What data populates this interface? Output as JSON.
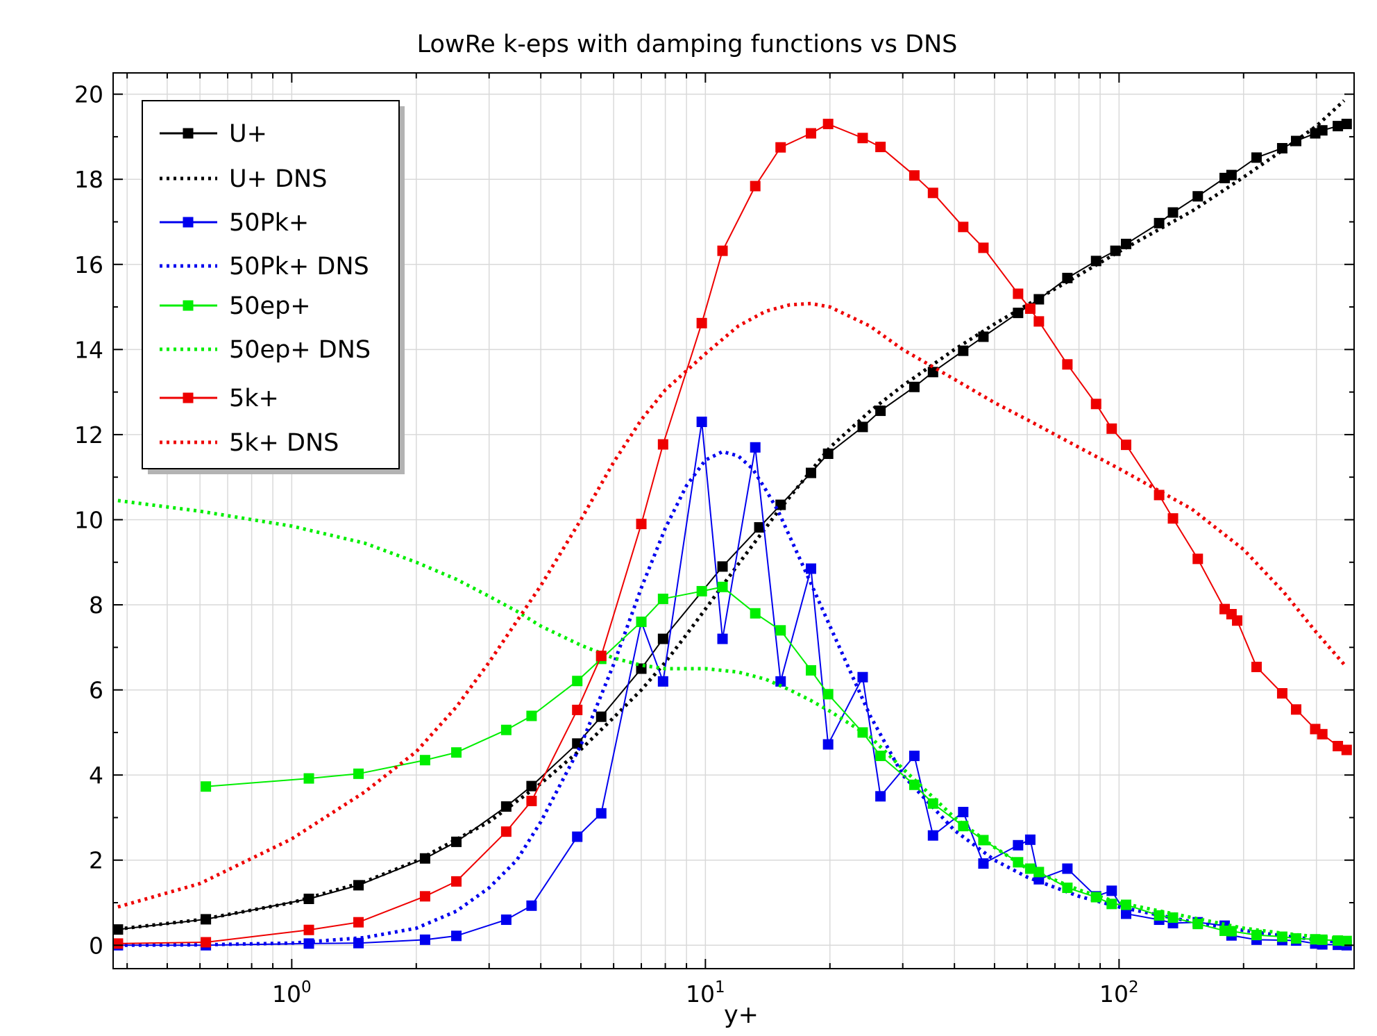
{
  "chart_data": {
    "type": "line",
    "title": "LowRe k-eps with damping functions vs DNS",
    "xlabel": "y+",
    "ylabel": "",
    "xscale": "log",
    "xlim": [
      0.37,
      370
    ],
    "ylim": [
      -0.55,
      20.5
    ],
    "grid": true,
    "legend_position": "top-left",
    "xticks": [
      {
        "value": 1,
        "base": "10",
        "exp": "0"
      },
      {
        "value": 10,
        "base": "10",
        "exp": "1"
      },
      {
        "value": 100,
        "base": "10",
        "exp": "2"
      }
    ],
    "yticks": [
      "0",
      "2",
      "4",
      "6",
      "8",
      "10",
      "12",
      "14",
      "16",
      "18",
      "20"
    ],
    "series": [
      {
        "name": "U+",
        "color": "#000000",
        "style": "solid",
        "marker": "square",
        "points": [
          [
            0.38,
            0.37
          ],
          [
            0.62,
            0.61
          ],
          [
            1.1,
            1.09
          ],
          [
            1.45,
            1.41
          ],
          [
            2.1,
            2.04
          ],
          [
            2.5,
            2.43
          ],
          [
            3.3,
            3.26
          ],
          [
            3.8,
            3.74
          ],
          [
            4.9,
            4.74
          ],
          [
            5.6,
            5.37
          ],
          [
            7.0,
            6.5
          ],
          [
            7.9,
            7.2
          ],
          [
            11.0,
            8.9
          ],
          [
            13.5,
            9.82
          ],
          [
            15.2,
            10.35
          ],
          [
            18.0,
            11.1
          ],
          [
            19.8,
            11.55
          ],
          [
            24.0,
            12.18
          ],
          [
            26.5,
            12.56
          ],
          [
            32.0,
            13.12
          ],
          [
            35.5,
            13.47
          ],
          [
            42.0,
            13.97
          ],
          [
            47.0,
            14.3
          ],
          [
            57.0,
            14.86
          ],
          [
            64.0,
            15.18
          ],
          [
            75.0,
            15.68
          ],
          [
            88.0,
            16.08
          ],
          [
            98.0,
            16.32
          ],
          [
            104.0,
            16.48
          ],
          [
            125.0,
            16.97
          ],
          [
            135.0,
            17.22
          ],
          [
            155.0,
            17.6
          ],
          [
            180.0,
            18.03
          ],
          [
            187.0,
            18.1
          ],
          [
            215.0,
            18.51
          ],
          [
            248.0,
            18.73
          ],
          [
            268.0,
            18.9
          ],
          [
            298.0,
            19.08
          ],
          [
            310.0,
            19.15
          ],
          [
            338.0,
            19.25
          ],
          [
            355.0,
            19.3
          ]
        ]
      },
      {
        "name": "U+ DNS",
        "color": "#000000",
        "style": "dotted",
        "points": [
          [
            0.38,
            0.38
          ],
          [
            0.6,
            0.6
          ],
          [
            1.0,
            1.0
          ],
          [
            1.5,
            1.49
          ],
          [
            2.0,
            1.98
          ],
          [
            3.0,
            2.9
          ],
          [
            4.0,
            3.8
          ],
          [
            5.0,
            4.6
          ],
          [
            6.0,
            5.35
          ],
          [
            7.0,
            6.0
          ],
          [
            8.0,
            6.65
          ],
          [
            9.0,
            7.3
          ],
          [
            10.0,
            7.9
          ],
          [
            12.0,
            8.95
          ],
          [
            15.0,
            10.2
          ],
          [
            18.0,
            11.15
          ],
          [
            20.0,
            11.7
          ],
          [
            25.0,
            12.55
          ],
          [
            30.0,
            13.15
          ],
          [
            40.0,
            14.0
          ],
          [
            50.0,
            14.6
          ],
          [
            60.0,
            15.05
          ],
          [
            80.0,
            15.75
          ],
          [
            100.0,
            16.3
          ],
          [
            150.0,
            17.25
          ],
          [
            200.0,
            18.05
          ],
          [
            250.0,
            18.7
          ],
          [
            300.0,
            19.25
          ],
          [
            350.0,
            19.85
          ]
        ]
      },
      {
        "name": "50Pk+",
        "color": "#0000ee",
        "style": "solid",
        "marker": "square",
        "points": [
          [
            0.38,
            0.0
          ],
          [
            0.62,
            0.0
          ],
          [
            1.1,
            0.04
          ],
          [
            1.45,
            0.05
          ],
          [
            2.1,
            0.13
          ],
          [
            2.5,
            0.22
          ],
          [
            3.3,
            0.6
          ],
          [
            3.8,
            0.93
          ],
          [
            4.9,
            2.55
          ],
          [
            5.6,
            3.1
          ],
          [
            7.0,
            7.6
          ],
          [
            7.9,
            6.2
          ],
          [
            9.8,
            12.3
          ],
          [
            11.0,
            7.2
          ],
          [
            13.2,
            11.7
          ],
          [
            15.2,
            6.2
          ],
          [
            18.0,
            8.85
          ],
          [
            19.8,
            4.72
          ],
          [
            24.0,
            6.3
          ],
          [
            26.5,
            3.5
          ],
          [
            32.0,
            4.45
          ],
          [
            35.5,
            2.58
          ],
          [
            42.0,
            3.13
          ],
          [
            47.0,
            1.92
          ],
          [
            57.0,
            2.35
          ],
          [
            61.0,
            2.48
          ],
          [
            64.0,
            1.55
          ],
          [
            75.0,
            1.8
          ],
          [
            88.0,
            1.15
          ],
          [
            96.0,
            1.28
          ],
          [
            104.0,
            0.74
          ],
          [
            125.0,
            0.6
          ],
          [
            135.0,
            0.52
          ],
          [
            155.0,
            0.54
          ],
          [
            180.0,
            0.46
          ],
          [
            187.0,
            0.23
          ],
          [
            215.0,
            0.13
          ],
          [
            248.0,
            0.12
          ],
          [
            268.0,
            0.11
          ],
          [
            298.0,
            0.04
          ],
          [
            310.0,
            0.02
          ],
          [
            338.0,
            0.01
          ],
          [
            355.0,
            0.0
          ]
        ]
      },
      {
        "name": "50Pk+ DNS",
        "color": "#0000ee",
        "style": "dotted",
        "points": [
          [
            0.38,
            0.0
          ],
          [
            0.6,
            0.01
          ],
          [
            1.0,
            0.05
          ],
          [
            1.5,
            0.18
          ],
          [
            2.0,
            0.4
          ],
          [
            2.5,
            0.8
          ],
          [
            3.0,
            1.35
          ],
          [
            3.5,
            2.0
          ],
          [
            4.0,
            2.9
          ],
          [
            5.0,
            4.7
          ],
          [
            6.0,
            6.6
          ],
          [
            7.0,
            8.4
          ],
          [
            8.0,
            9.8
          ],
          [
            9.0,
            10.8
          ],
          [
            10.0,
            11.4
          ],
          [
            11.0,
            11.6
          ],
          [
            12.0,
            11.5
          ],
          [
            13.0,
            11.2
          ],
          [
            14.0,
            10.7
          ],
          [
            15.0,
            10.2
          ],
          [
            16.0,
            9.6
          ],
          [
            18.0,
            8.5
          ],
          [
            20.0,
            7.5
          ],
          [
            25.0,
            5.4
          ],
          [
            30.0,
            4.0
          ],
          [
            40.0,
            2.7
          ],
          [
            50.0,
            2.0
          ],
          [
            60.0,
            1.6
          ],
          [
            80.0,
            1.15
          ],
          [
            100.0,
            0.9
          ],
          [
            150.0,
            0.55
          ],
          [
            200.0,
            0.35
          ],
          [
            250.0,
            0.22
          ],
          [
            300.0,
            0.13
          ],
          [
            350.0,
            0.06
          ]
        ]
      },
      {
        "name": "50ep+",
        "color": "#00ee00",
        "style": "solid",
        "marker": "square",
        "points": [
          [
            0.62,
            3.73
          ],
          [
            1.1,
            3.92
          ],
          [
            1.45,
            4.03
          ],
          [
            2.1,
            4.35
          ],
          [
            2.5,
            4.53
          ],
          [
            3.3,
            5.06
          ],
          [
            3.8,
            5.39
          ],
          [
            4.9,
            6.21
          ],
          [
            5.6,
            6.73
          ],
          [
            7.0,
            7.6
          ],
          [
            7.9,
            8.14
          ],
          [
            9.8,
            8.32
          ],
          [
            11.0,
            8.42
          ],
          [
            13.2,
            7.8
          ],
          [
            15.2,
            7.4
          ],
          [
            18.0,
            6.46
          ],
          [
            19.8,
            5.9
          ],
          [
            24.0,
            5.0
          ],
          [
            26.5,
            4.45
          ],
          [
            32.0,
            3.77
          ],
          [
            35.5,
            3.33
          ],
          [
            42.0,
            2.8
          ],
          [
            47.0,
            2.47
          ],
          [
            57.0,
            1.95
          ],
          [
            61.0,
            1.8
          ],
          [
            64.0,
            1.72
          ],
          [
            75.0,
            1.35
          ],
          [
            88.0,
            1.13
          ],
          [
            96.0,
            0.97
          ],
          [
            104.0,
            0.95
          ],
          [
            125.0,
            0.7
          ],
          [
            135.0,
            0.65
          ],
          [
            155.0,
            0.5
          ],
          [
            180.0,
            0.34
          ],
          [
            187.0,
            0.33
          ],
          [
            215.0,
            0.24
          ],
          [
            248.0,
            0.2
          ],
          [
            268.0,
            0.16
          ],
          [
            298.0,
            0.14
          ],
          [
            310.0,
            0.13
          ],
          [
            338.0,
            0.11
          ],
          [
            355.0,
            0.1
          ]
        ]
      },
      {
        "name": "50ep+ DNS",
        "color": "#00ee00",
        "style": "dotted",
        "points": [
          [
            0.38,
            10.45
          ],
          [
            0.6,
            10.2
          ],
          [
            1.0,
            9.85
          ],
          [
            1.5,
            9.45
          ],
          [
            2.0,
            9.0
          ],
          [
            2.5,
            8.6
          ],
          [
            3.0,
            8.2
          ],
          [
            3.5,
            7.85
          ],
          [
            4.0,
            7.5
          ],
          [
            5.0,
            7.05
          ],
          [
            6.0,
            6.75
          ],
          [
            7.0,
            6.58
          ],
          [
            8.0,
            6.5
          ],
          [
            10.0,
            6.5
          ],
          [
            12.0,
            6.42
          ],
          [
            14.0,
            6.25
          ],
          [
            16.0,
            6.0
          ],
          [
            18.0,
            5.75
          ],
          [
            20.0,
            5.5
          ],
          [
            25.0,
            4.9
          ],
          [
            30.0,
            4.15
          ],
          [
            40.0,
            3.0
          ],
          [
            50.0,
            2.3
          ],
          [
            60.0,
            1.8
          ],
          [
            80.0,
            1.3
          ],
          [
            100.0,
            1.0
          ],
          [
            150.0,
            0.65
          ],
          [
            200.0,
            0.4
          ],
          [
            250.0,
            0.28
          ],
          [
            300.0,
            0.2
          ],
          [
            350.0,
            0.15
          ]
        ]
      },
      {
        "name": "5k+",
        "color": "#ee0000",
        "style": "solid",
        "marker": "square",
        "points": [
          [
            0.38,
            0.04
          ],
          [
            0.62,
            0.07
          ],
          [
            1.1,
            0.36
          ],
          [
            1.45,
            0.54
          ],
          [
            2.1,
            1.15
          ],
          [
            2.5,
            1.5
          ],
          [
            3.3,
            2.67
          ],
          [
            3.8,
            3.39
          ],
          [
            4.9,
            5.53
          ],
          [
            5.6,
            6.8
          ],
          [
            7.0,
            9.9
          ],
          [
            7.9,
            11.77
          ],
          [
            9.8,
            14.62
          ],
          [
            11.0,
            16.32
          ],
          [
            13.2,
            17.84
          ],
          [
            15.2,
            18.75
          ],
          [
            18.0,
            19.08
          ],
          [
            19.8,
            19.3
          ],
          [
            24.0,
            18.97
          ],
          [
            26.5,
            18.76
          ],
          [
            32.0,
            18.09
          ],
          [
            35.5,
            17.68
          ],
          [
            42.0,
            16.88
          ],
          [
            47.0,
            16.39
          ],
          [
            57.0,
            15.31
          ],
          [
            61.0,
            14.96
          ],
          [
            64.0,
            14.66
          ],
          [
            75.0,
            13.65
          ],
          [
            88.0,
            12.72
          ],
          [
            96.0,
            12.14
          ],
          [
            104.0,
            11.76
          ],
          [
            125.0,
            10.58
          ],
          [
            135.0,
            10.03
          ],
          [
            155.0,
            9.08
          ],
          [
            180.0,
            7.9
          ],
          [
            187.0,
            7.78
          ],
          [
            193.0,
            7.63
          ],
          [
            215.0,
            6.54
          ],
          [
            248.0,
            5.92
          ],
          [
            268.0,
            5.54
          ],
          [
            298.0,
            5.08
          ],
          [
            310.0,
            4.96
          ],
          [
            338.0,
            4.68
          ],
          [
            355.0,
            4.59
          ]
        ]
      },
      {
        "name": "5k+ DNS",
        "color": "#ee0000",
        "style": "dotted",
        "points": [
          [
            0.38,
            0.9
          ],
          [
            0.6,
            1.45
          ],
          [
            1.0,
            2.5
          ],
          [
            1.5,
            3.6
          ],
          [
            2.0,
            4.55
          ],
          [
            2.5,
            5.6
          ],
          [
            3.0,
            6.65
          ],
          [
            4.0,
            8.45
          ],
          [
            5.0,
            10.0
          ],
          [
            6.0,
            11.35
          ],
          [
            7.0,
            12.35
          ],
          [
            8.0,
            13.05
          ],
          [
            10.0,
            13.9
          ],
          [
            12.0,
            14.55
          ],
          [
            14.0,
            14.9
          ],
          [
            16.0,
            15.05
          ],
          [
            18.0,
            15.08
          ],
          [
            20.0,
            15.0
          ],
          [
            25.0,
            14.55
          ],
          [
            30.0,
            14.0
          ],
          [
            40.0,
            13.3
          ],
          [
            50.0,
            12.75
          ],
          [
            60.0,
            12.35
          ],
          [
            80.0,
            11.7
          ],
          [
            100.0,
            11.2
          ],
          [
            150.0,
            10.25
          ],
          [
            200.0,
            9.3
          ],
          [
            250.0,
            8.3
          ],
          [
            300.0,
            7.35
          ],
          [
            350.0,
            6.6
          ]
        ]
      }
    ]
  }
}
